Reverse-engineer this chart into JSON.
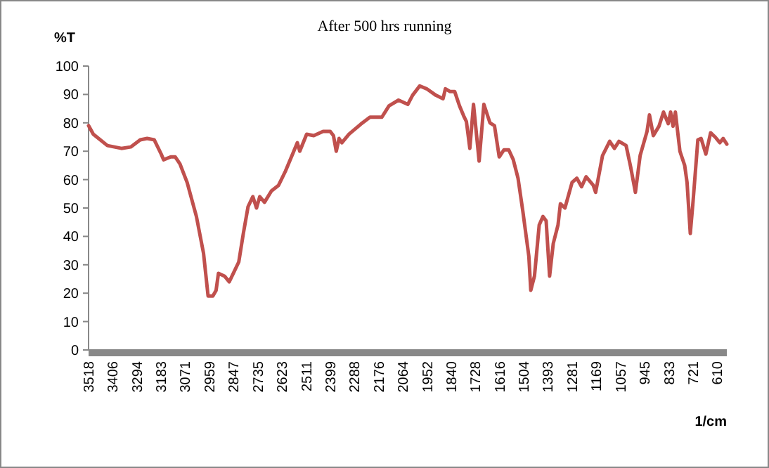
{
  "chart_data": {
    "type": "line",
    "title": "After 500 hrs running",
    "xlabel": "1/cm",
    "ylabel": "%T",
    "xlim": [
      3518,
      565
    ],
    "xticks": [
      3518,
      3406,
      3294,
      3183,
      3071,
      2959,
      2847,
      2735,
      2623,
      2511,
      2399,
      2288,
      2176,
      2064,
      1952,
      1840,
      1728,
      1616,
      1504,
      1393,
      1281,
      1169,
      1057,
      945,
      833,
      721,
      610
    ],
    "ylim": [
      0,
      100
    ],
    "yticks": [
      0,
      10,
      20,
      30,
      40,
      50,
      60,
      70,
      80,
      90,
      100
    ],
    "grid": false,
    "marker": "none",
    "line_style": "solid",
    "series": [
      {
        "color": "#c0504d",
        "x": [
          3518,
          3496,
          3431,
          3366,
          3323,
          3279,
          3247,
          3214,
          3182,
          3171,
          3138,
          3117,
          3095,
          3062,
          3019,
          2986,
          2965,
          2943,
          2928,
          2917,
          2889,
          2867,
          2845,
          2823,
          2802,
          2780,
          2758,
          2741,
          2726,
          2704,
          2672,
          2639,
          2607,
          2574,
          2552,
          2541,
          2509,
          2476,
          2433,
          2400,
          2385,
          2372,
          2359,
          2346,
          2313,
          2259,
          2216,
          2161,
          2128,
          2084,
          2041,
          2019,
          1986,
          1954,
          1911,
          1878,
          1867,
          1845,
          1824,
          1802,
          1780,
          1770,
          1754,
          1737,
          1711,
          1689,
          1661,
          1640,
          1618,
          1596,
          1574,
          1553,
          1531,
          1509,
          1481,
          1472,
          1455,
          1433,
          1416,
          1401,
          1385,
          1368,
          1346,
          1335,
          1314,
          1281,
          1259,
          1237,
          1216,
          1183,
          1172,
          1140,
          1107,
          1085,
          1064,
          1031,
          1010,
          988,
          966,
          934,
          923,
          905,
          879,
          858,
          836,
          825,
          814,
          803,
          782,
          760,
          749,
          734,
          721,
          699,
          684,
          662,
          640,
          619,
          597,
          582,
          565
        ],
        "values": [
          79,
          76,
          72,
          71,
          71.5,
          74,
          74.5,
          74,
          69,
          67,
          68,
          68,
          65.5,
          59,
          47,
          34,
          19,
          19,
          21,
          27,
          26,
          24,
          27.5,
          31,
          41,
          50.5,
          54,
          50,
          54,
          52,
          56,
          58,
          63,
          69,
          73,
          70,
          76,
          75.5,
          77,
          77,
          75.5,
          70,
          74.5,
          73,
          76,
          79.5,
          82,
          82,
          86,
          88,
          86.5,
          89.7,
          93,
          92,
          89.7,
          88.5,
          92,
          91,
          91,
          86,
          82,
          80.5,
          71,
          86.5,
          66.5,
          86.5,
          80,
          79,
          68,
          70.5,
          70.5,
          67,
          60.5,
          49,
          33,
          21,
          26,
          44,
          47,
          45.5,
          26,
          37.5,
          44,
          51.5,
          50,
          59,
          60.5,
          57.5,
          61,
          58,
          55.5,
          68.5,
          73.5,
          71,
          73.5,
          72,
          64.5,
          55.5,
          68.5,
          77,
          82.8,
          75.5,
          78.8,
          83.8,
          79.7,
          83.8,
          78.8,
          83.8,
          70,
          65,
          59,
          41,
          52.5,
          74,
          74.5,
          69,
          76.5,
          75,
          73,
          74.5,
          72.5
        ]
      }
    ]
  }
}
